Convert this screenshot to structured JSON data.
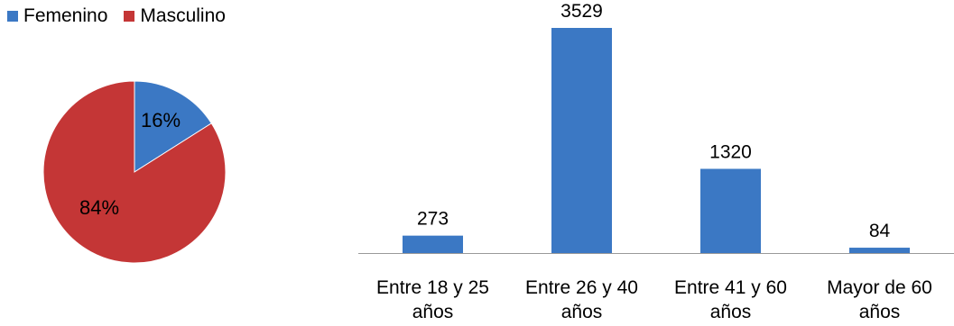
{
  "chart_data": [
    {
      "type": "pie",
      "title": "",
      "categories": [
        "Femenino",
        "Masculino"
      ],
      "values": [
        16,
        84
      ],
      "data_labels": [
        "16%",
        "84%"
      ],
      "colors": [
        "#3B78C4",
        "#C43636"
      ],
      "legend": "top-left"
    },
    {
      "type": "bar",
      "title": "",
      "categories": [
        "Entre 18 y 25 años",
        "Entre 26 y 40 años",
        "Entre 41 y 60 años",
        "Mayor de 60 años"
      ],
      "category_lines": [
        [
          "Entre 18 y 25",
          "años"
        ],
        [
          "Entre 26 y 40",
          "años"
        ],
        [
          "Entre 41 y 60",
          "años"
        ],
        [
          "Mayor de 60",
          "años"
        ]
      ],
      "values": [
        273,
        3529,
        1320,
        84
      ],
      "data_labels": [
        "273",
        "3529",
        "1320",
        "84"
      ],
      "color": "#3B78C4",
      "xlabel": "",
      "ylabel": "",
      "ylim": [
        0,
        3529
      ],
      "grid": false,
      "legend": "none"
    }
  ]
}
